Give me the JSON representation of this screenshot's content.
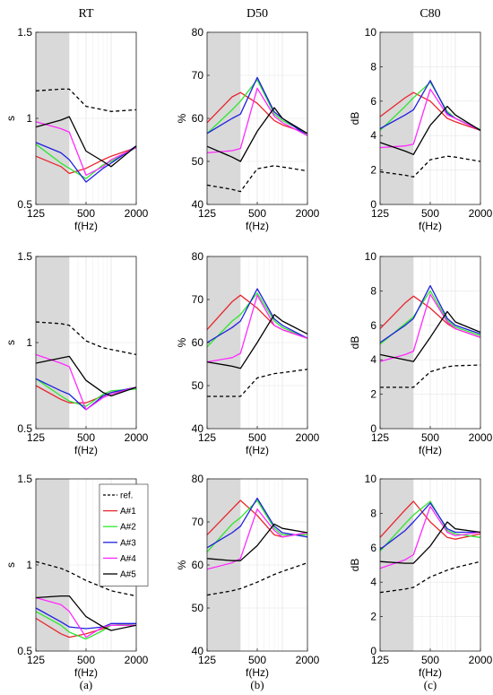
{
  "column_titles": [
    "RT",
    "D50",
    "C80"
  ],
  "panel_labels": [
    "(a)",
    "(b)",
    "(c)"
  ],
  "legend": {
    "entries": [
      "ref.",
      "A#1",
      "A#2",
      "A#3",
      "A#4",
      "A#5"
    ],
    "colors": [
      "#000000",
      "#e8262c",
      "#2ee62e",
      "#2020e0",
      "#ff2aff",
      "#000000"
    ],
    "dashed": [
      true,
      false,
      false,
      false,
      false,
      false
    ]
  },
  "chart_data": [
    {
      "type": "line",
      "column": "RT",
      "row": 1,
      "ylabel": "s",
      "xlabel": "f(Hz)",
      "ylim": [
        0.5,
        1.5
      ],
      "log_x": true,
      "xlim": [
        125,
        2000
      ],
      "x_ticks": [
        125,
        500,
        2000
      ],
      "y_ticks": [
        0.5,
        1,
        1.5
      ],
      "y_tick_labels": [
        "0.5",
        "1",
        "1.5"
      ],
      "shaded_x": [
        125,
        315
      ],
      "grid": true,
      "x": [
        125,
        250,
        315,
        500,
        800,
        1000,
        2000
      ],
      "series": [
        {
          "name": "ref.",
          "values": [
            1.16,
            1.17,
            1.17,
            1.07,
            1.05,
            1.04,
            1.05
          ]
        },
        {
          "name": "A#1",
          "values": [
            0.78,
            0.72,
            0.68,
            0.71,
            0.76,
            0.78,
            0.83
          ]
        },
        {
          "name": "A#2",
          "values": [
            0.85,
            0.74,
            0.71,
            0.65,
            0.73,
            0.75,
            0.83
          ]
        },
        {
          "name": "A#3",
          "values": [
            0.86,
            0.8,
            0.76,
            0.63,
            0.71,
            0.74,
            0.84
          ]
        },
        {
          "name": "A#4",
          "values": [
            0.98,
            0.94,
            0.92,
            0.67,
            0.72,
            0.76,
            0.83
          ]
        },
        {
          "name": "A#5",
          "values": [
            0.95,
            0.99,
            1.01,
            0.81,
            0.75,
            0.72,
            0.84
          ]
        }
      ]
    },
    {
      "type": "line",
      "column": "D50",
      "row": 1,
      "ylabel": "%",
      "xlabel": "f(Hz)",
      "ylim": [
        40,
        80
      ],
      "log_x": true,
      "xlim": [
        125,
        2000
      ],
      "x_ticks": [
        125,
        500,
        2000
      ],
      "y_ticks": [
        40,
        50,
        60,
        70,
        80
      ],
      "y_tick_labels": [
        "40",
        "50",
        "60",
        "70",
        "80"
      ],
      "shaded_x": [
        125,
        315
      ],
      "grid": true,
      "x": [
        125,
        250,
        315,
        500,
        800,
        1000,
        2000
      ],
      "series": [
        {
          "name": "ref.",
          "values": [
            44.5,
            43.5,
            43.0,
            48.3,
            49.0,
            48.7,
            47.8
          ]
        },
        {
          "name": "A#1",
          "values": [
            59.0,
            65.0,
            66.0,
            63.5,
            59.5,
            58.5,
            56.5
          ]
        },
        {
          "name": "A#2",
          "values": [
            56.5,
            62.0,
            64.0,
            69.0,
            61.0,
            59.5,
            56.5
          ]
        },
        {
          "name": "A#3",
          "values": [
            56.5,
            60.0,
            61.0,
            69.5,
            61.5,
            60.0,
            56.0
          ]
        },
        {
          "name": "A#4",
          "values": [
            52.0,
            52.5,
            53.0,
            67.0,
            60.5,
            59.0,
            56.0
          ]
        },
        {
          "name": "A#5",
          "values": [
            53.5,
            51.0,
            50.0,
            57.0,
            62.5,
            60.0,
            56.5
          ]
        }
      ]
    },
    {
      "type": "line",
      "column": "C80",
      "row": 1,
      "ylabel": "dB",
      "xlabel": "f(Hz)",
      "ylim": [
        0,
        10
      ],
      "log_x": true,
      "xlim": [
        125,
        2000
      ],
      "x_ticks": [
        125,
        500,
        2000
      ],
      "y_ticks": [
        0,
        2,
        4,
        6,
        8,
        10
      ],
      "y_tick_labels": [
        "0",
        "2",
        "4",
        "6",
        "8",
        "10"
      ],
      "shaded_x": [
        125,
        315
      ],
      "grid": true,
      "x": [
        125,
        250,
        315,
        500,
        800,
        1000,
        2000
      ],
      "series": [
        {
          "name": "ref.",
          "values": [
            1.9,
            1.7,
            1.6,
            2.6,
            2.8,
            2.75,
            2.5
          ]
        },
        {
          "name": "A#1",
          "values": [
            5.1,
            6.2,
            6.5,
            6.0,
            5.0,
            4.8,
            4.3
          ]
        },
        {
          "name": "A#2",
          "values": [
            4.3,
            5.7,
            6.2,
            7.1,
            5.4,
            5.0,
            4.35
          ]
        },
        {
          "name": "A#3",
          "values": [
            4.4,
            5.2,
            5.5,
            7.2,
            5.3,
            5.0,
            4.3
          ]
        },
        {
          "name": "A#4",
          "values": [
            3.3,
            3.4,
            3.5,
            6.7,
            5.2,
            5.0,
            4.3
          ]
        },
        {
          "name": "A#5",
          "values": [
            3.6,
            3.1,
            2.9,
            4.6,
            5.7,
            5.2,
            4.3
          ]
        }
      ]
    },
    {
      "type": "line",
      "column": "RT",
      "row": 2,
      "ylabel": "s",
      "xlabel": "f(Hz)",
      "ylim": [
        0.5,
        1.5
      ],
      "log_x": true,
      "xlim": [
        125,
        2000
      ],
      "x_ticks": [
        125,
        500,
        2000
      ],
      "y_ticks": [
        0.5,
        1,
        1.5
      ],
      "y_tick_labels": [
        "0.5",
        "1",
        "1.5"
      ],
      "shaded_x": [
        125,
        315
      ],
      "grid": true,
      "x": [
        125,
        250,
        315,
        500,
        800,
        1000,
        2000
      ],
      "series": [
        {
          "name": "ref.",
          "values": [
            1.12,
            1.11,
            1.1,
            1.01,
            0.97,
            0.96,
            0.93
          ]
        },
        {
          "name": "A#1",
          "values": [
            0.75,
            0.67,
            0.65,
            0.65,
            0.69,
            0.71,
            0.74
          ]
        },
        {
          "name": "A#2",
          "values": [
            0.79,
            0.69,
            0.66,
            0.63,
            0.7,
            0.72,
            0.73
          ]
        },
        {
          "name": "A#3",
          "values": [
            0.79,
            0.72,
            0.7,
            0.61,
            0.69,
            0.71,
            0.74
          ]
        },
        {
          "name": "A#4",
          "values": [
            0.93,
            0.88,
            0.86,
            0.61,
            0.68,
            0.7,
            0.74
          ]
        },
        {
          "name": "A#5",
          "values": [
            0.88,
            0.91,
            0.92,
            0.78,
            0.71,
            0.69,
            0.74
          ]
        }
      ]
    },
    {
      "type": "line",
      "column": "D50",
      "row": 2,
      "ylabel": "%",
      "xlabel": "f(Hz)",
      "ylim": [
        40,
        80
      ],
      "log_x": true,
      "xlim": [
        125,
        2000
      ],
      "x_ticks": [
        125,
        500,
        2000
      ],
      "y_ticks": [
        40,
        50,
        60,
        70,
        80
      ],
      "y_tick_labels": [
        "40",
        "50",
        "60",
        "70",
        "80"
      ],
      "shaded_x": [
        125,
        315
      ],
      "grid": true,
      "x": [
        125,
        250,
        315,
        500,
        800,
        1000,
        2000
      ],
      "series": [
        {
          "name": "ref.",
          "values": [
            47.5,
            47.5,
            47.5,
            51.8,
            52.8,
            53.0,
            53.8
          ]
        },
        {
          "name": "A#1",
          "values": [
            63.0,
            69.5,
            71.0,
            68.0,
            64.0,
            63.0,
            61.0
          ]
        },
        {
          "name": "A#2",
          "values": [
            59.0,
            65.0,
            66.5,
            71.5,
            65.0,
            63.5,
            61.0
          ]
        },
        {
          "name": "A#3",
          "values": [
            60.0,
            63.5,
            65.0,
            72.5,
            65.5,
            64.0,
            61.0
          ]
        },
        {
          "name": "A#4",
          "values": [
            55.5,
            56.5,
            57.5,
            71.0,
            64.0,
            63.0,
            61.0
          ]
        },
        {
          "name": "A#5",
          "values": [
            55.5,
            54.5,
            54.0,
            60.0,
            66.5,
            65.0,
            62.0
          ]
        }
      ]
    },
    {
      "type": "line",
      "column": "C80",
      "row": 2,
      "ylabel": "dB",
      "xlabel": "f(Hz)",
      "ylim": [
        0,
        10
      ],
      "log_x": true,
      "xlim": [
        125,
        2000
      ],
      "x_ticks": [
        125,
        500,
        2000
      ],
      "y_ticks": [
        0,
        2,
        4,
        6,
        8,
        10
      ],
      "y_tick_labels": [
        "0",
        "2",
        "4",
        "6",
        "8",
        "10"
      ],
      "shaded_x": [
        125,
        315
      ],
      "grid": true,
      "x": [
        125,
        250,
        315,
        500,
        800,
        1000,
        2000
      ],
      "series": [
        {
          "name": "ref.",
          "values": [
            2.4,
            2.4,
            2.4,
            3.3,
            3.6,
            3.65,
            3.7
          ]
        },
        {
          "name": "A#1",
          "values": [
            5.8,
            7.3,
            7.7,
            7.0,
            6.1,
            5.8,
            5.3
          ]
        },
        {
          "name": "A#2",
          "values": [
            4.9,
            6.1,
            6.5,
            8.0,
            6.3,
            5.9,
            5.4
          ]
        },
        {
          "name": "A#3",
          "values": [
            5.0,
            6.0,
            6.4,
            8.3,
            6.4,
            6.0,
            5.5
          ]
        },
        {
          "name": "A#4",
          "values": [
            3.9,
            4.3,
            4.5,
            7.8,
            6.2,
            5.8,
            5.3
          ]
        },
        {
          "name": "A#5",
          "values": [
            4.3,
            4.0,
            3.9,
            5.3,
            6.8,
            6.2,
            5.6
          ]
        }
      ]
    },
    {
      "type": "line",
      "column": "RT",
      "row": 3,
      "ylabel": "s",
      "xlabel": "f(Hz)",
      "ylim": [
        0.5,
        1.5
      ],
      "log_x": true,
      "xlim": [
        125,
        2000
      ],
      "x_ticks": [
        125,
        500,
        2000
      ],
      "y_ticks": [
        0.5,
        1,
        1.5
      ],
      "y_tick_labels": [
        "0.5",
        "1",
        "1.5"
      ],
      "shaded_x": [
        125,
        315
      ],
      "grid": true,
      "x": [
        125,
        250,
        315,
        500,
        800,
        1000,
        2000
      ],
      "series": [
        {
          "name": "ref.",
          "values": [
            1.02,
            0.98,
            0.96,
            0.91,
            0.87,
            0.85,
            0.82
          ]
        },
        {
          "name": "A#1",
          "values": [
            0.69,
            0.6,
            0.58,
            0.6,
            0.63,
            0.65,
            0.65
          ]
        },
        {
          "name": "A#2",
          "values": [
            0.73,
            0.65,
            0.61,
            0.57,
            0.62,
            0.65,
            0.66
          ]
        },
        {
          "name": "A#3",
          "values": [
            0.75,
            0.67,
            0.64,
            0.63,
            0.64,
            0.66,
            0.66
          ]
        },
        {
          "name": "A#4",
          "values": [
            0.81,
            0.77,
            0.73,
            0.58,
            0.64,
            0.65,
            0.65
          ]
        },
        {
          "name": "A#5",
          "values": [
            0.81,
            0.82,
            0.82,
            0.7,
            0.64,
            0.62,
            0.65
          ]
        }
      ]
    },
    {
      "type": "line",
      "column": "D50",
      "row": 3,
      "ylabel": "%",
      "xlabel": "f(Hz)",
      "ylim": [
        40,
        80
      ],
      "log_x": true,
      "xlim": [
        125,
        2000
      ],
      "x_ticks": [
        125,
        500,
        2000
      ],
      "y_ticks": [
        40,
        50,
        60,
        70,
        80
      ],
      "y_tick_labels": [
        "40",
        "50",
        "60",
        "70",
        "80"
      ],
      "shaded_x": [
        125,
        315
      ],
      "grid": true,
      "x": [
        125,
        250,
        315,
        500,
        800,
        1000,
        2000
      ],
      "series": [
        {
          "name": "ref.",
          "values": [
            53.0,
            54.0,
            54.5,
            56.0,
            57.8,
            58.5,
            60.5
          ]
        },
        {
          "name": "A#1",
          "values": [
            67.0,
            73.0,
            75.0,
            71.5,
            67.0,
            66.5,
            67.5
          ]
        },
        {
          "name": "A#2",
          "values": [
            63.0,
            69.5,
            71.0,
            75.0,
            68.5,
            67.0,
            67.0
          ]
        },
        {
          "name": "A#3",
          "values": [
            64.0,
            67.5,
            69.0,
            75.5,
            69.0,
            67.5,
            66.5
          ]
        },
        {
          "name": "A#4",
          "values": [
            59.0,
            60.5,
            61.5,
            73.0,
            68.0,
            66.5,
            67.5
          ]
        },
        {
          "name": "A#5",
          "values": [
            61.5,
            61.0,
            61.0,
            64.5,
            69.5,
            68.5,
            67.5
          ]
        }
      ]
    },
    {
      "type": "line",
      "column": "C80",
      "row": 3,
      "ylabel": "dB",
      "xlabel": "f(Hz)",
      "ylim": [
        0,
        10
      ],
      "log_x": true,
      "xlim": [
        125,
        2000
      ],
      "x_ticks": [
        125,
        500,
        2000
      ],
      "y_ticks": [
        0,
        2,
        4,
        6,
        8,
        10
      ],
      "y_tick_labels": [
        "0",
        "2",
        "4",
        "6",
        "8",
        "10"
      ],
      "shaded_x": [
        125,
        315
      ],
      "grid": true,
      "x": [
        125,
        250,
        315,
        500,
        800,
        1000,
        2000
      ],
      "series": [
        {
          "name": "ref.",
          "values": [
            3.4,
            3.6,
            3.7,
            4.3,
            4.7,
            4.85,
            5.2
          ]
        },
        {
          "name": "A#1",
          "values": [
            6.6,
            8.2,
            8.7,
            7.5,
            6.6,
            6.5,
            6.8
          ]
        },
        {
          "name": "A#2",
          "values": [
            5.8,
            7.4,
            7.9,
            8.7,
            7.0,
            6.8,
            6.6
          ]
        },
        {
          "name": "A#3",
          "values": [
            5.9,
            7.0,
            7.5,
            8.6,
            7.1,
            6.9,
            6.9
          ]
        },
        {
          "name": "A#4",
          "values": [
            4.8,
            5.3,
            5.6,
            8.4,
            6.9,
            6.7,
            6.9
          ]
        },
        {
          "name": "A#5",
          "values": [
            5.2,
            5.1,
            5.1,
            6.1,
            7.5,
            7.1,
            6.9
          ]
        }
      ]
    }
  ]
}
